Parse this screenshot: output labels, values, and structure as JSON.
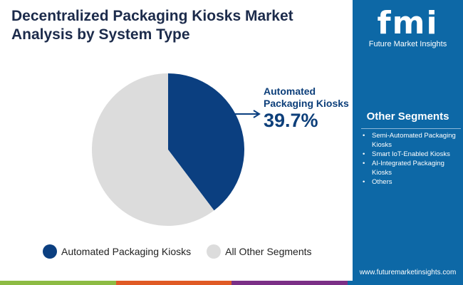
{
  "chart_data": {
    "type": "pie",
    "title": "Decentralized Packaging Kiosks Market Analysis by System Type",
    "slices": [
      {
        "label": "Automated Packaging Kiosks",
        "value": 39.7,
        "value_label": "39.7%",
        "color": "#0b3f80"
      },
      {
        "label": "All Other Segments",
        "value": 60.3,
        "color": "#dcdcdc"
      }
    ],
    "legend_placement": "bottom"
  },
  "brand": {
    "logo": "fmi",
    "name": "Future Market Insights",
    "url": "www.futuremarketinsights.com"
  },
  "sidebar": {
    "heading": "Other Segments",
    "items": [
      "Semi-Automated Packaging Kiosks",
      "Smart IoT-Enabled Kiosks",
      "AI-Integrated Packaging Kiosks",
      "Others"
    ]
  },
  "colors": {
    "sidebar": "#0d68a6",
    "bars": [
      "#8dbb43",
      "#e05a24",
      "#7b2f86",
      "#0d68a6"
    ]
  }
}
